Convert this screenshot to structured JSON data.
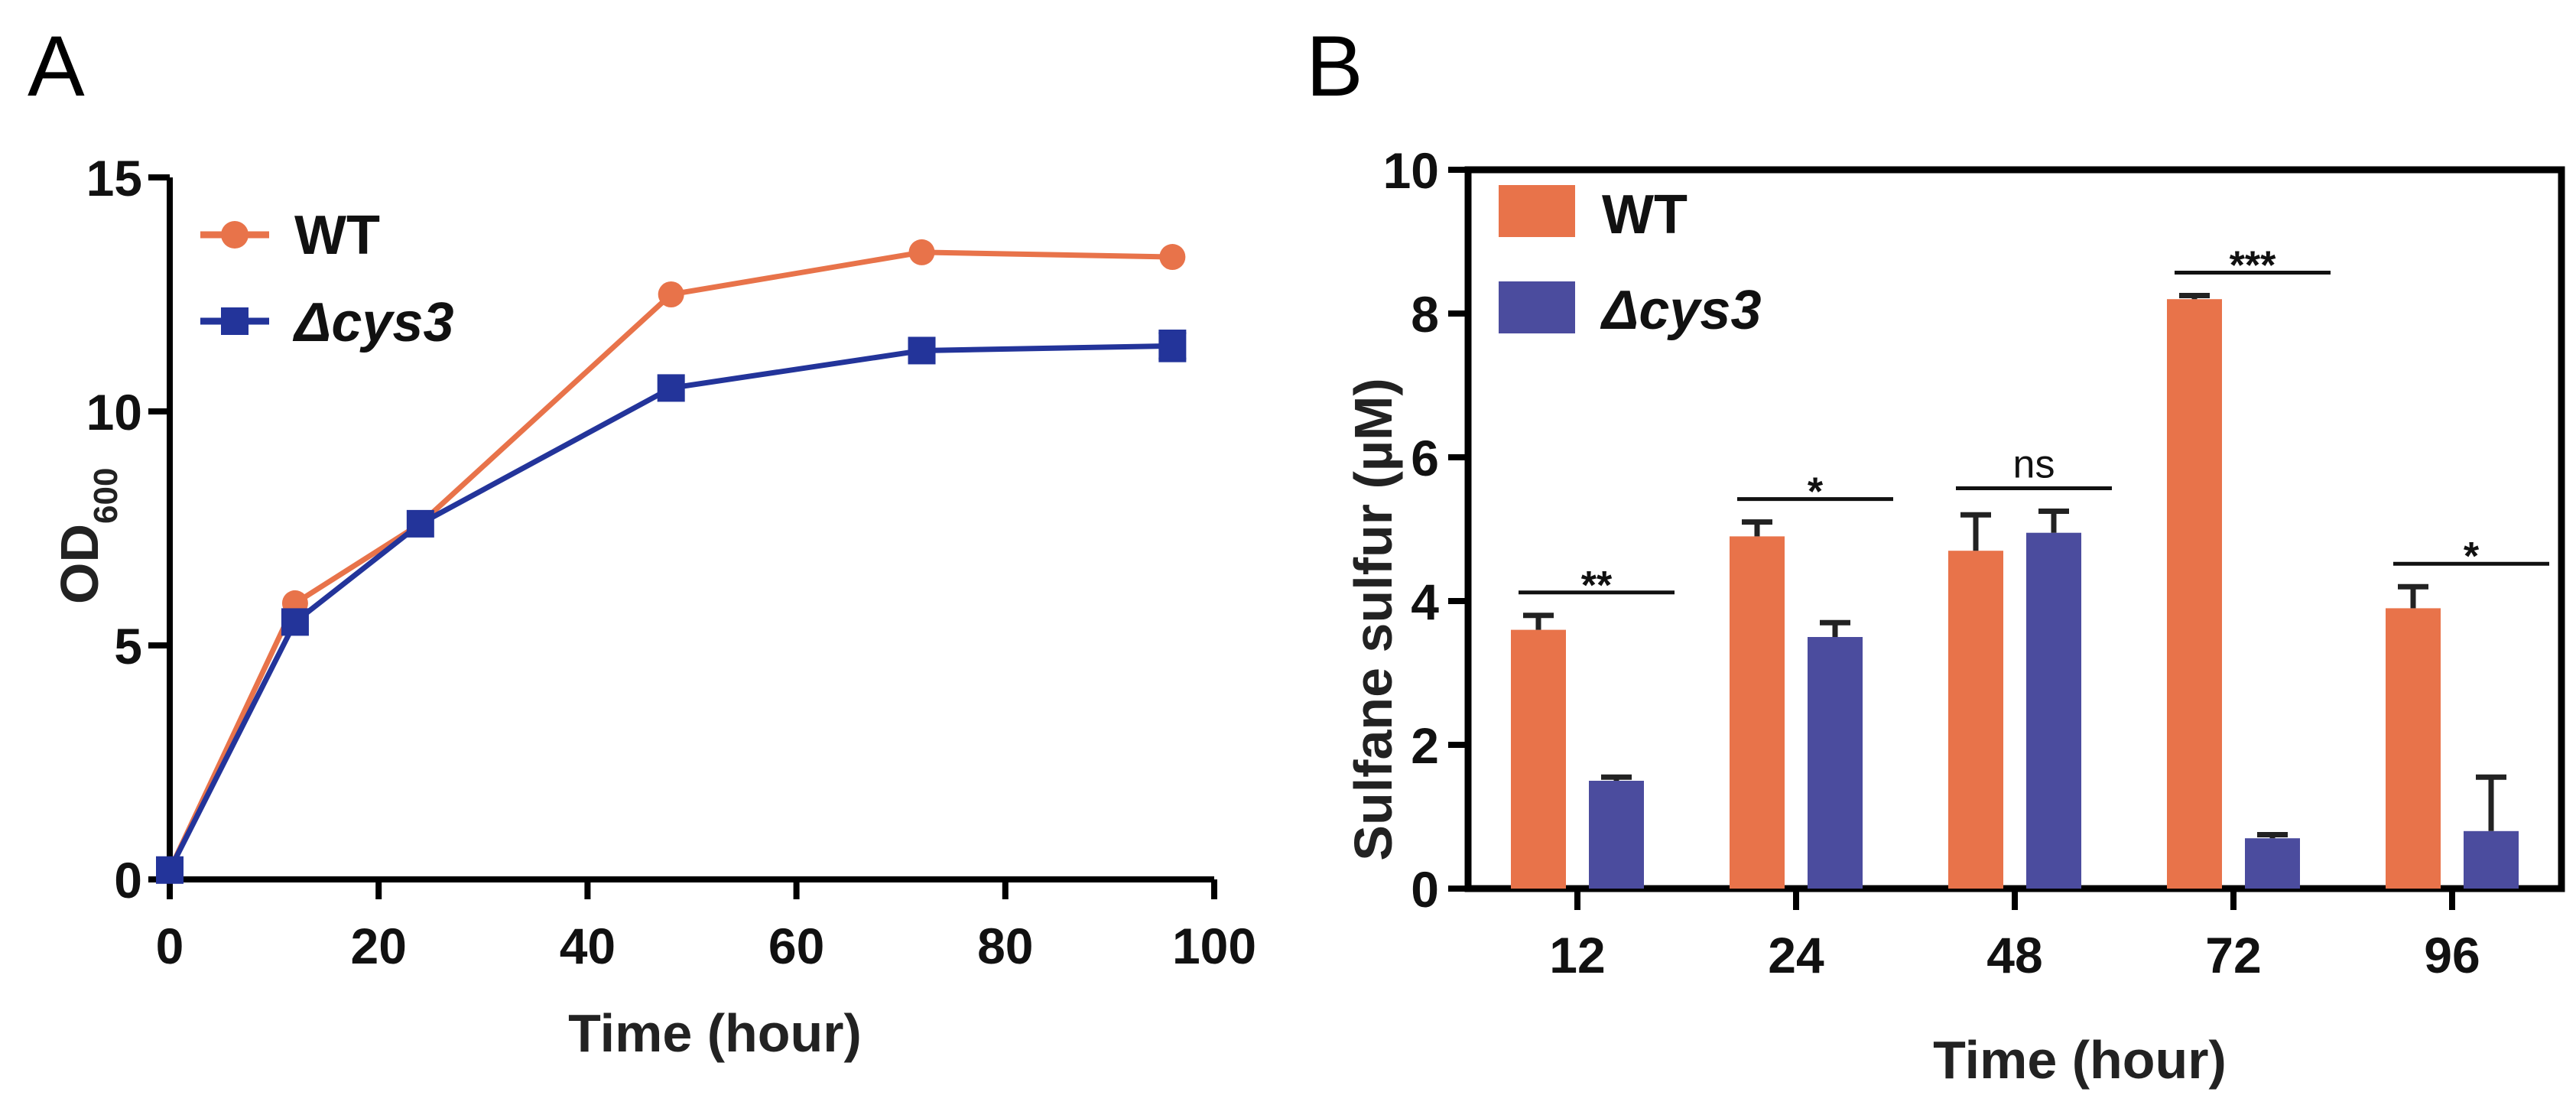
{
  "colors": {
    "wt": "#E8734A",
    "cys3": "#23349A",
    "bar_cys3": "#4B4C9E",
    "axis": "#000000"
  },
  "chart_data": [
    {
      "panel": "A",
      "type": "line",
      "xlabel": "Time (hour)",
      "ylabel_main": "OD",
      "ylabel_sub": "600",
      "xlim": [
        0,
        100
      ],
      "ylim": [
        0,
        15
      ],
      "xticks": [
        0,
        20,
        40,
        60,
        80,
        100
      ],
      "yticks": [
        0,
        5,
        10,
        15
      ],
      "series": [
        {
          "name": "WT",
          "marker": "circle",
          "x": [
            0,
            12,
            24,
            48,
            72,
            96
          ],
          "y": [
            0.2,
            5.9,
            7.6,
            12.5,
            13.4,
            13.3
          ],
          "err": [
            0,
            0,
            0,
            0,
            0,
            0
          ]
        },
        {
          "name": "Δcys3",
          "marker": "square",
          "x": [
            0,
            12,
            24,
            48,
            72,
            96
          ],
          "y": [
            0.2,
            5.5,
            7.6,
            10.5,
            11.3,
            11.4
          ],
          "err": [
            0,
            0,
            0,
            0,
            0,
            0.3
          ]
        }
      ],
      "legend": "top-left"
    },
    {
      "panel": "B",
      "type": "bar",
      "xlabel": "Time (hour)",
      "ylabel": "Sulfane sulfur (µM)",
      "ylim": [
        0,
        10
      ],
      "yticks": [
        0,
        2,
        4,
        6,
        8,
        10
      ],
      "categories": [
        "12",
        "24",
        "48",
        "72",
        "96"
      ],
      "series": [
        {
          "name": "WT",
          "values": [
            3.6,
            4.9,
            4.7,
            8.2,
            3.9
          ],
          "err": [
            0.2,
            0.2,
            0.5,
            0.05,
            0.3
          ]
        },
        {
          "name": "Δcys3",
          "values": [
            1.5,
            3.5,
            4.95,
            0.7,
            0.8
          ],
          "err": [
            0.05,
            0.2,
            0.3,
            0.05,
            0.75
          ]
        }
      ],
      "significance": [
        "**",
        "*",
        "ns",
        "***",
        "*"
      ],
      "legend": "top-left"
    }
  ]
}
